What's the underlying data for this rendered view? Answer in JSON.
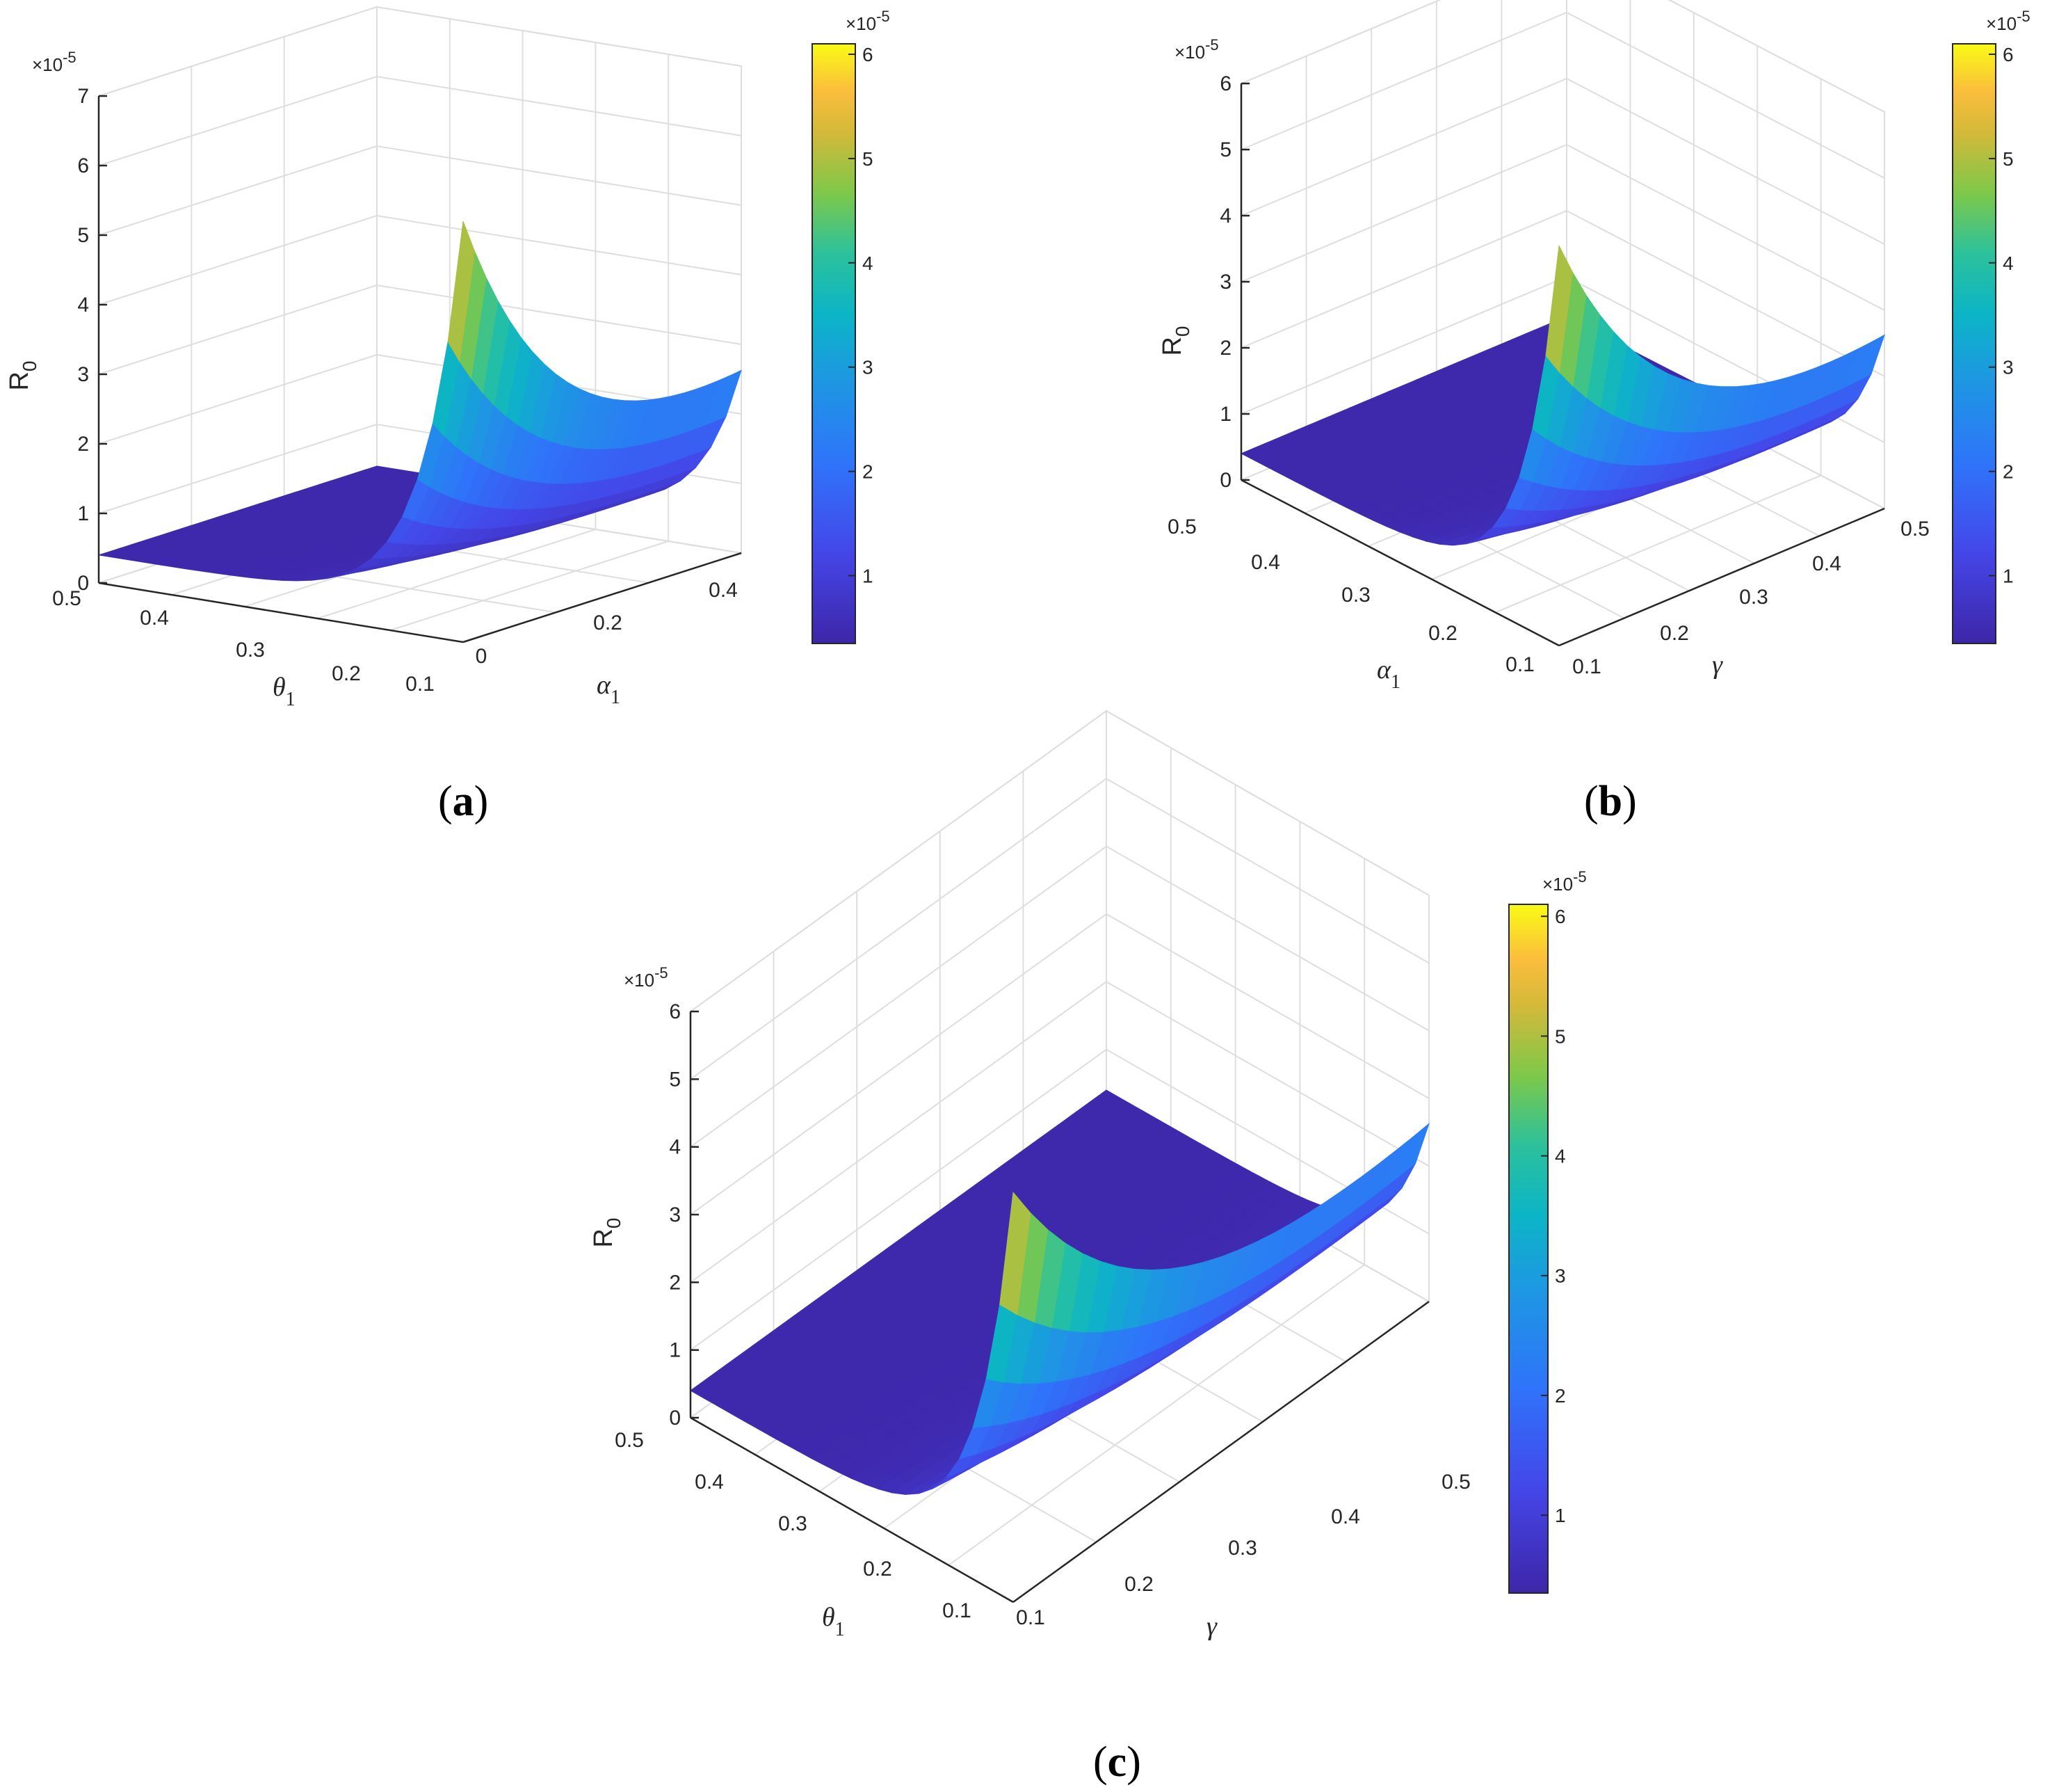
{
  "chart_data": [
    {
      "panel": "(a)",
      "type": "surface",
      "zlabel": "R",
      "zlabel_sub": "0",
      "xlabel": "θ",
      "xlabel_sub": "1",
      "ylabel": "α",
      "ylabel_sub": "1",
      "exponent": "×10",
      "exponent_power": "-5",
      "zlim": [
        0,
        7
      ],
      "zticks": [
        "0",
        "1",
        "2",
        "3",
        "4",
        "5",
        "6",
        "7"
      ],
      "xticks": [
        "0.5",
        "0.4",
        "0.3",
        "0.2",
        "0.1"
      ],
      "yticks": [
        "0",
        "0.2",
        "0.4"
      ],
      "surface_max": 6.05,
      "surface_min": 0.4,
      "colorbar": {
        "exponent": "×10",
        "exponent_power": "-5",
        "ticks": [
          "1",
          "2",
          "3",
          "4",
          "5",
          "6"
        ],
        "range": [
          0.35,
          6.1
        ]
      }
    },
    {
      "panel": "(b)",
      "type": "surface",
      "zlabel": "R",
      "zlabel_sub": "0",
      "xlabel": "α",
      "xlabel_sub": "1",
      "ylabel": "γ",
      "ylabel_sub": "",
      "exponent": "×10",
      "exponent_power": "-5",
      "zlim": [
        0,
        6
      ],
      "zticks": [
        "0",
        "1",
        "2",
        "3",
        "4",
        "5",
        "6"
      ],
      "xticks": [
        "0.5",
        "0.4",
        "0.3",
        "0.2",
        "0.1"
      ],
      "yticks": [
        "0.1",
        "0.2",
        "0.3",
        "0.4",
        "0.5"
      ],
      "surface_max": 6.05,
      "surface_min": 0.4,
      "colorbar": {
        "exponent": "×10",
        "exponent_power": "-5",
        "ticks": [
          "1",
          "2",
          "3",
          "4",
          "5",
          "6"
        ],
        "range": [
          0.35,
          6.1
        ]
      }
    },
    {
      "panel": "(c)",
      "type": "surface",
      "zlabel": "R",
      "zlabel_sub": "0",
      "xlabel": "θ",
      "xlabel_sub": "1",
      "ylabel": "γ",
      "ylabel_sub": "",
      "exponent": "×10",
      "exponent_power": "-5",
      "zlim": [
        0,
        6
      ],
      "zticks": [
        "0",
        "1",
        "2",
        "3",
        "4",
        "5",
        "6"
      ],
      "xticks": [
        "0.5",
        "0.4",
        "0.3",
        "0.2",
        "0.1"
      ],
      "yticks": [
        "0.1",
        "0.2",
        "0.3",
        "0.4",
        "0.5"
      ],
      "surface_max": 6.05,
      "surface_min": 0.4,
      "colorbar": {
        "exponent": "×10",
        "exponent_power": "-5",
        "ticks": [
          "1",
          "2",
          "3",
          "4",
          "5",
          "6"
        ],
        "range": [
          0.35,
          6.1
        ]
      }
    }
  ],
  "panel_labels": {
    "a": "a",
    "b": "b",
    "c": "c"
  },
  "colors": {
    "grid": "#dedede",
    "axis": "#262626",
    "background": "#ffffff"
  }
}
